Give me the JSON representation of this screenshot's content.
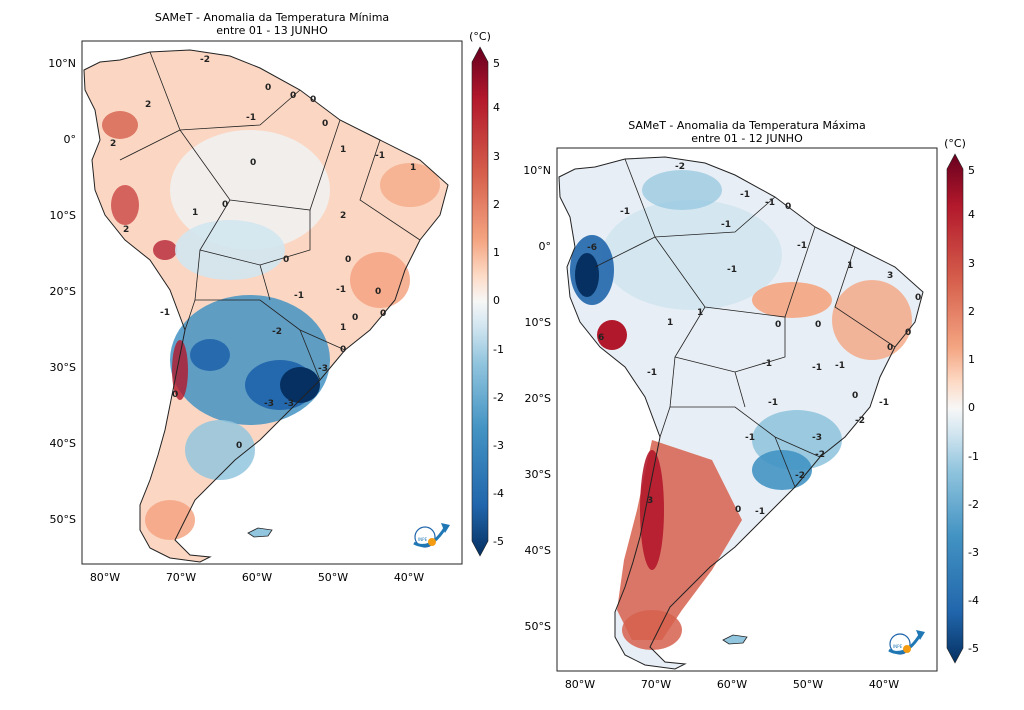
{
  "colors": {
    "dark_red": "#67001f",
    "red": "#b2182b",
    "mid_red": "#d6604d",
    "light_red": "#f4a582",
    "pale_red": "#fddbc7",
    "white": "#f7f7f7",
    "pale_blue": "#d1e5f0",
    "light_blue": "#92c5de",
    "mid_blue": "#4393c3",
    "blue": "#2166ac",
    "dark_blue": "#053061"
  },
  "left_map": {
    "title_line1": "SAMeT - Anomalia da Temperatura Mínima",
    "title_line2": "entre 01 - 13 JUNHO",
    "colorbar_unit": "(°C)",
    "colorbar_ticks": [
      "5",
      "4",
      "3",
      "2",
      "1",
      "0",
      "-1",
      "-2",
      "-3",
      "-4",
      "-5"
    ],
    "lat_ticks": [
      "10°N",
      "0°",
      "10°S",
      "20°S",
      "30°S",
      "40°S",
      "50°S"
    ],
    "lon_ticks": [
      "80°W",
      "70°W",
      "60°W",
      "50°W",
      "40°W"
    ],
    "contour_labels": [
      "-2",
      "0",
      "0",
      "0",
      "-1",
      "2",
      "0",
      "1",
      "2",
      "-1",
      "0",
      "1",
      "0",
      "1",
      "2",
      "2",
      "0",
      "0",
      "0",
      "0",
      "-1",
      "-1",
      "0",
      "1",
      "0",
      "-1",
      "-2",
      "0",
      "-3",
      "-3",
      "-3",
      "0"
    ]
  },
  "right_map": {
    "title_line1": "SAMeT - Anomalia da Temperatura Máxima",
    "title_line2": "entre 01 - 12 JUNHO",
    "colorbar_unit": "(°C)",
    "colorbar_ticks": [
      "5",
      "4",
      "3",
      "2",
      "1",
      "0",
      "-1",
      "-2",
      "-3",
      "-4",
      "-5"
    ],
    "lat_ticks": [
      "10°N",
      "0°",
      "10°S",
      "20°S",
      "30°S",
      "40°S",
      "50°S"
    ],
    "lon_ticks": [
      "80°W",
      "70°W",
      "60°W",
      "50°W",
      "40°W"
    ],
    "contour_labels": [
      "-2",
      "-1",
      "-1",
      "0",
      "-1",
      "-1",
      "-6",
      "-1",
      "-1",
      "1",
      "0",
      "3",
      "0",
      "0",
      "1",
      "0",
      "1",
      "6",
      "-1",
      "0",
      "-1",
      "-1",
      "-1",
      "-1",
      "-1",
      "-3",
      "-2",
      "-2",
      "0",
      "-1",
      "-2",
      "3",
      "0",
      "-1"
    ]
  },
  "logo_label": "INPE"
}
